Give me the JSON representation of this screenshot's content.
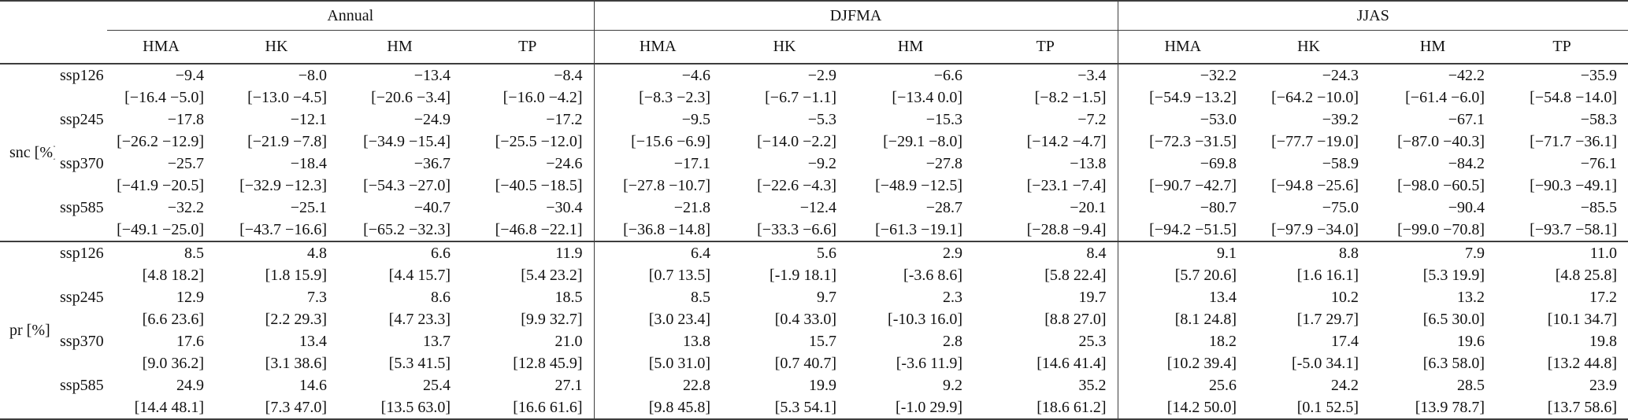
{
  "header": {
    "groups": [
      {
        "label": "Annual"
      },
      {
        "label": "DJFMA"
      },
      {
        "label": "JJAS"
      }
    ],
    "columns": [
      "HMA",
      "HK",
      "HM",
      "TP"
    ]
  },
  "body": {
    "groups": [
      {
        "label": "snc [%]",
        "rows": [
          {
            "scenario": "ssp126",
            "values": [
              "−9.4",
              "−8.0",
              "−13.4",
              "−8.4",
              "−4.6",
              "−2.9",
              "−6.6",
              "−3.4",
              "−32.2",
              "−24.3",
              "−42.2",
              "−35.9"
            ],
            "ranges": [
              "[−16.4 −5.0]",
              "[−13.0 −4.5]",
              "[−20.6 −3.4]",
              "[−16.0 −4.2]",
              "[−8.3 −2.3]",
              "[−6.7 −1.1]",
              "[−13.4 0.0]",
              "[−8.2 −1.5]",
              "[−54.9 −13.2]",
              "[−64.2 −10.0]",
              "[−61.4 −6.0]",
              "[−54.8 −14.0]"
            ]
          },
          {
            "scenario": "ssp245",
            "values": [
              "−17.8",
              "−12.1",
              "−24.9",
              "−17.2",
              "−9.5",
              "−5.3",
              "−15.3",
              "−7.2",
              "−53.0",
              "−39.2",
              "−67.1",
              "−58.3"
            ],
            "ranges": [
              "[−26.2 −12.9]",
              "[−21.9 −7.8]",
              "[−34.9 −15.4]",
              "[−25.5 −12.0]",
              "[−15.6 −6.9]",
              "[−14.0 −2.2]",
              "[−29.1 −8.0]",
              "[−14.2 −4.7]",
              "[−72.3 −31.5]",
              "[−77.7 −19.0]",
              "[−87.0 −40.3]",
              "[−71.7 −36.1]"
            ]
          },
          {
            "scenario": "ssp370",
            "values": [
              "−25.7",
              "−18.4",
              "−36.7",
              "−24.6",
              "−17.1",
              "−9.2",
              "−27.8",
              "−13.8",
              "−69.8",
              "−58.9",
              "−84.2",
              "−76.1"
            ],
            "ranges": [
              "[−41.9 −20.5]",
              "[−32.9 −12.3]",
              "[−54.3 −27.0]",
              "[−40.5 −18.5]",
              "[−27.8 −10.7]",
              "[−22.6 −4.3]",
              "[−48.9 −12.5]",
              "[−23.1 −7.4]",
              "[−90.7 −42.7]",
              "[−94.8 −25.6]",
              "[−98.0 −60.5]",
              "[−90.3 −49.1]"
            ]
          },
          {
            "scenario": "ssp585",
            "values": [
              "−32.2",
              "−25.1",
              "−40.7",
              "−30.4",
              "−21.8",
              "−12.4",
              "−28.7",
              "−20.1",
              "−80.7",
              "−75.0",
              "−90.4",
              "−85.5"
            ],
            "ranges": [
              "[−49.1 −25.0]",
              "[−43.7 −16.6]",
              "[−65.2 −32.3]",
              "[−46.8 −22.1]",
              "[−36.8 −14.8]",
              "[−33.3 −6.6]",
              "[−61.3 −19.1]",
              "[−28.8 −9.4]",
              "[−94.2 −51.5]",
              "[−97.9 −34.0]",
              "[−99.0 −70.8]",
              "[−93.7 −58.1]"
            ]
          }
        ]
      },
      {
        "label": "pr [%]",
        "rows": [
          {
            "scenario": "ssp126",
            "values": [
              "8.5",
              "4.8",
              "6.6",
              "11.9",
              "6.4",
              "5.6",
              "2.9",
              "8.4",
              "9.1",
              "8.8",
              "7.9",
              "11.0"
            ],
            "ranges": [
              "[4.8 18.2]",
              "[1.8 15.9]",
              "[4.4 15.7]",
              "[5.4 23.2]",
              "[0.7 13.5]",
              "[-1.9 18.1]",
              "[-3.6 8.6]",
              "[5.8 22.4]",
              "[5.7 20.6]",
              "[1.6 16.1]",
              "[5.3 19.9]",
              "[4.8 25.8]"
            ]
          },
          {
            "scenario": "ssp245",
            "values": [
              "12.9",
              "7.3",
              "8.6",
              "18.5",
              "8.5",
              "9.7",
              "2.3",
              "19.7",
              "13.4",
              "10.2",
              "13.2",
              "17.2"
            ],
            "ranges": [
              "[6.6 23.6]",
              "[2.2 29.3]",
              "[4.7 23.3]",
              "[9.9 32.7]",
              "[3.0 23.4]",
              "[0.4 33.0]",
              "[-10.3 16.0]",
              "[8.8 27.0]",
              "[8.1 24.8]",
              "[1.7 29.7]",
              "[6.5 30.0]",
              "[10.1 34.7]"
            ]
          },
          {
            "scenario": "ssp370",
            "values": [
              "17.6",
              "13.4",
              "13.7",
              "21.0",
              "13.8",
              "15.7",
              "2.8",
              "25.3",
              "18.2",
              "17.4",
              "19.6",
              "19.8"
            ],
            "ranges": [
              "[9.0 36.2]",
              "[3.1 38.6]",
              "[5.3 41.5]",
              "[12.8 45.9]",
              "[5.0 31.0]",
              "[0.7 40.7]",
              "[-3.6 11.9]",
              "[14.6 41.4]",
              "[10.2 39.4]",
              "[-5.0 34.1]",
              "[6.3 58.0]",
              "[13.2 44.8]"
            ]
          },
          {
            "scenario": "ssp585",
            "values": [
              "24.9",
              "14.6",
              "25.4",
              "27.1",
              "22.8",
              "19.9",
              "9.2",
              "35.2",
              "25.6",
              "24.2",
              "28.5",
              "23.9"
            ],
            "ranges": [
              "[14.4 48.1]",
              "[7.3 47.0]",
              "[13.5 63.0]",
              "[16.6 61.6]",
              "[9.8 45.8]",
              "[5.3 54.1]",
              "[-1.0 29.9]",
              "[18.6 61.2]",
              "[14.2 50.0]",
              "[0.1 52.5]",
              "[13.9 78.7]",
              "[13.7 58.6]"
            ]
          }
        ]
      }
    ]
  }
}
